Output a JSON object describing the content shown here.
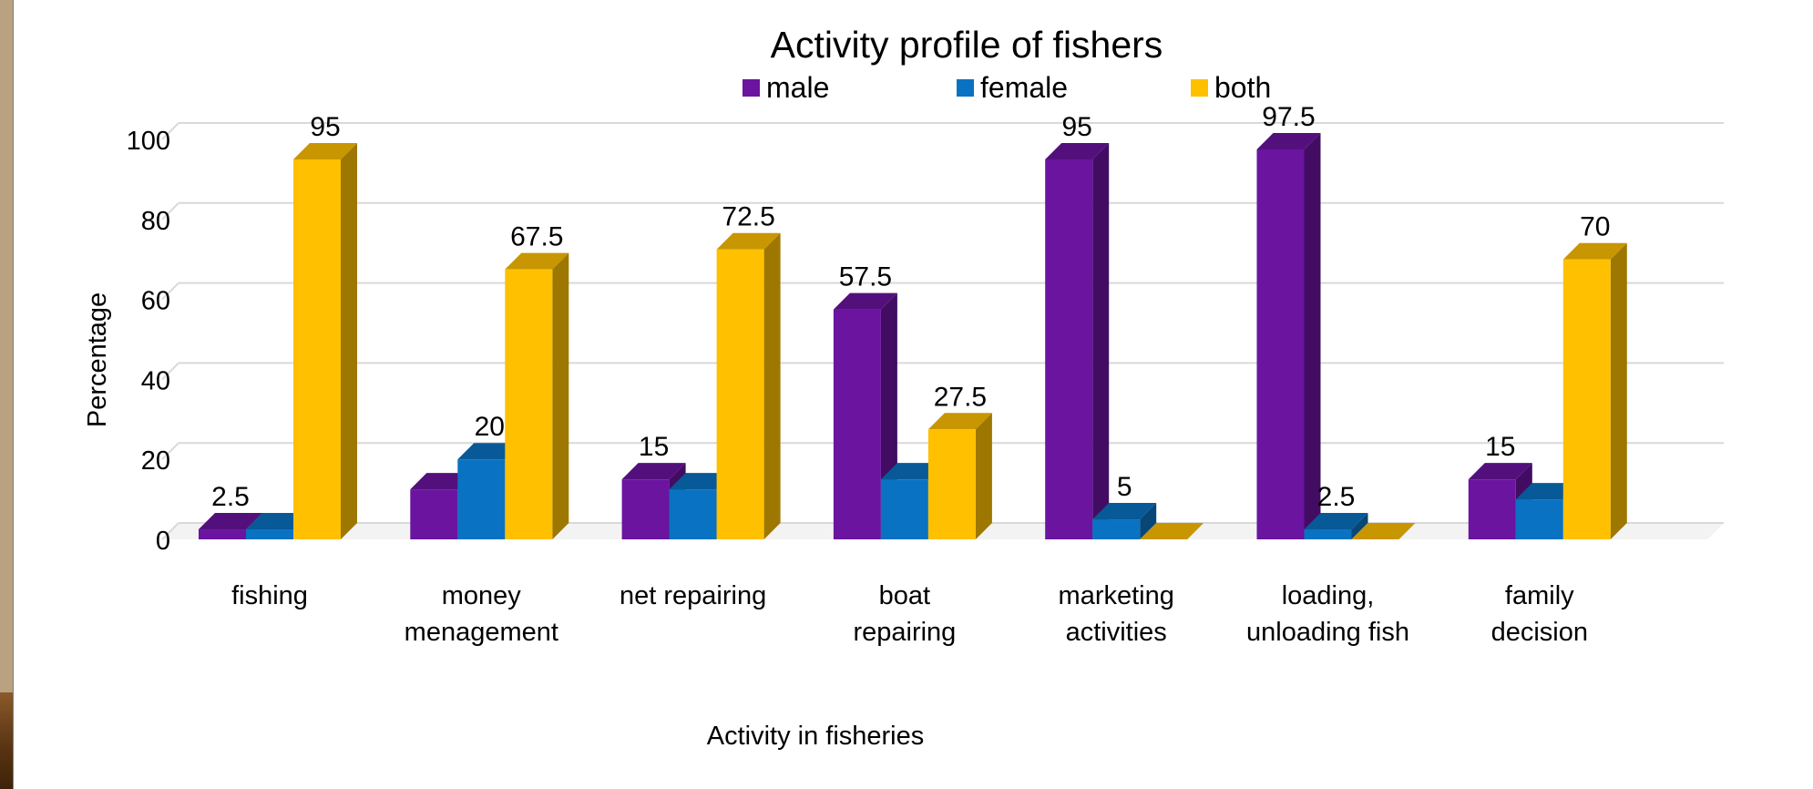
{
  "chart_data": {
    "type": "bar",
    "title": "Activity profile of fishers",
    "xlabel": "Activity in fisheries",
    "ylabel": "Percentage",
    "ylim": [
      0,
      100
    ],
    "yticks": [
      "0",
      "20",
      "40",
      "60",
      "80",
      "100"
    ],
    "grid": true,
    "legend_position": "top",
    "categories": [
      [
        "fishing"
      ],
      [
        "money",
        "menagement"
      ],
      [
        "net repairing"
      ],
      [
        "boat",
        "repairing"
      ],
      [
        "marketing",
        "activities"
      ],
      [
        "loading,",
        "unloading fish"
      ],
      [
        "family",
        "decision"
      ]
    ],
    "series": [
      {
        "name": "male",
        "color": "#6a14a0",
        "values": [
          2.5,
          12.5,
          15,
          57.5,
          95,
          97.5,
          15
        ],
        "labels": [
          "2.5",
          "",
          "15",
          "57.5",
          "95",
          "97.5",
          "15"
        ]
      },
      {
        "name": "female",
        "color": "#0a72c2",
        "values": [
          2.5,
          20,
          12.5,
          15,
          5,
          2.5,
          10
        ],
        "labels": [
          "",
          "20",
          "",
          "",
          "5",
          "2.5",
          ""
        ]
      },
      {
        "name": "both",
        "color": "#ffc000",
        "values": [
          95,
          67.5,
          72.5,
          27.5,
          0,
          0,
          70
        ],
        "labels": [
          "95",
          "67.5",
          "72.5",
          "27.5",
          "",
          "",
          "70"
        ]
      }
    ]
  }
}
